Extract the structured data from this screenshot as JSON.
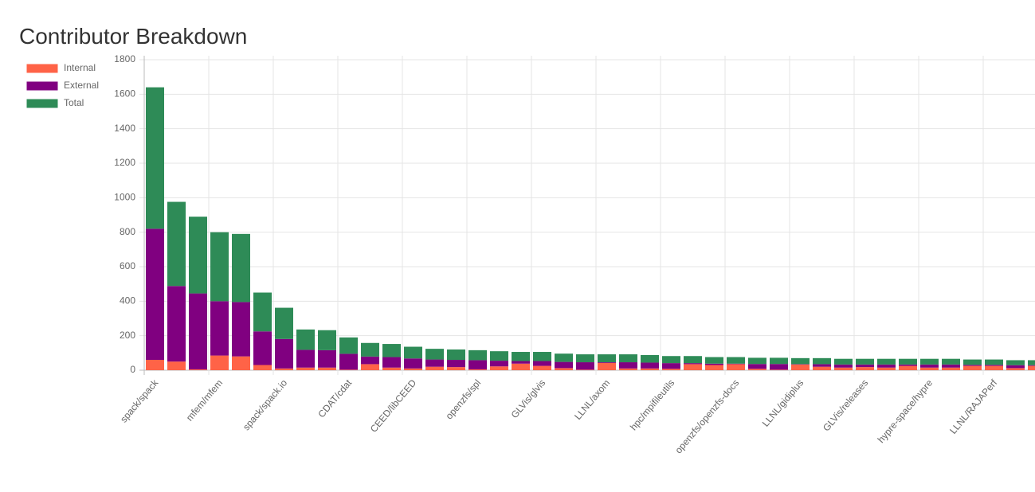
{
  "chart_data": {
    "type": "bar",
    "stacked": true,
    "title": "Contributor Breakdown",
    "legend": "left",
    "grid": true,
    "categories": [
      "spack/spack",
      null,
      null,
      "mfem/mfem",
      null,
      null,
      "spack/spack.io",
      null,
      null,
      "CDAT/cdat",
      null,
      null,
      "CEED/libCEED",
      null,
      null,
      "openzfs/spl",
      null,
      null,
      "GLVis/glvis",
      null,
      null,
      "LLNL/axom",
      null,
      null,
      "hpc/mpifileutils",
      null,
      null,
      "openzfs/openzfs-docs",
      null,
      null,
      "LLNL/gidiplus",
      null,
      null,
      "GLVis/releases",
      null,
      null,
      "hypre-space/hypre",
      null,
      null,
      "LLNL/RAJAPerf",
      null,
      null
    ],
    "series": [
      {
        "name": "Internal",
        "color": "#ff6347",
        "values": [
          60,
          50,
          5,
          85,
          80,
          30,
          10,
          15,
          15,
          3,
          35,
          15,
          10,
          20,
          18,
          5,
          22,
          38,
          25,
          12,
          3,
          42,
          10,
          10,
          8,
          35,
          30,
          35,
          8,
          3,
          33,
          20,
          15,
          18,
          15,
          25,
          15,
          15,
          25,
          25,
          12,
          25
        ]
      },
      {
        "name": "External",
        "color": "#800080",
        "values": [
          760,
          438,
          440,
          315,
          315,
          195,
          171,
          103,
          101,
          92,
          44,
          61,
          58,
          42,
          42,
          53,
          33,
          15,
          28,
          36,
          43,
          4,
          36,
          34,
          33,
          6,
          8,
          3,
          28,
          33,
          2,
          15,
          18,
          15,
          18,
          8,
          18,
          18,
          6,
          6,
          17,
          4
        ]
      },
      {
        "name": "Total",
        "color": "#2e8b57",
        "values": [
          820,
          488,
          445,
          400,
          395,
          225,
          181,
          118,
          116,
          95,
          79,
          76,
          68,
          62,
          60,
          58,
          55,
          53,
          53,
          48,
          46,
          46,
          46,
          44,
          41,
          41,
          38,
          38,
          36,
          36,
          35,
          35,
          33,
          33,
          33,
          33,
          33,
          33,
          31,
          31,
          29,
          29
        ]
      }
    ],
    "ylim": [
      0,
      1800
    ],
    "yticks": [
      0,
      200,
      400,
      600,
      800,
      1000,
      1200,
      1400,
      1600,
      1800
    ]
  }
}
